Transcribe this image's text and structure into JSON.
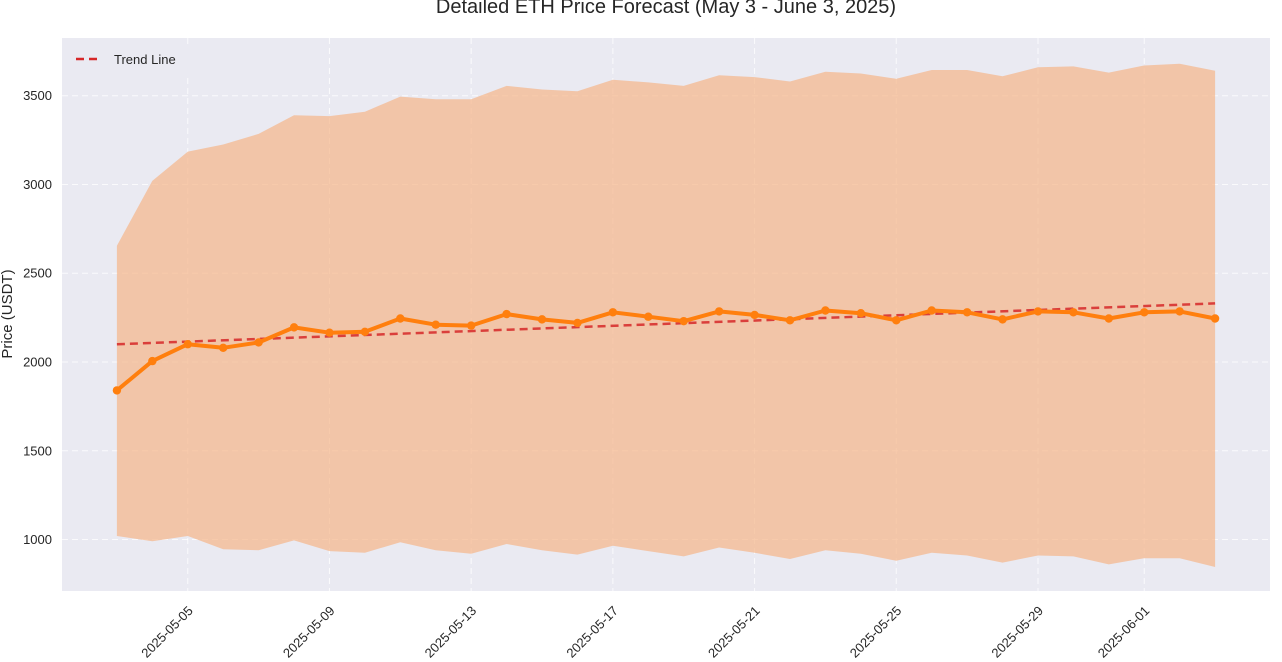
{
  "chart_data": {
    "type": "line",
    "title": "Detailed ETH Price Forecast (May 3 - June 3, 2025)",
    "xlabel": "",
    "ylabel": "Price (USDT)",
    "x": [
      "2025-05-03",
      "2025-05-04",
      "2025-05-05",
      "2025-05-06",
      "2025-05-07",
      "2025-05-08",
      "2025-05-09",
      "2025-05-10",
      "2025-05-11",
      "2025-05-12",
      "2025-05-13",
      "2025-05-14",
      "2025-05-15",
      "2025-05-16",
      "2025-05-17",
      "2025-05-18",
      "2025-05-19",
      "2025-05-20",
      "2025-05-21",
      "2025-05-22",
      "2025-05-23",
      "2025-05-24",
      "2025-05-25",
      "2025-05-26",
      "2025-05-27",
      "2025-05-28",
      "2025-05-29",
      "2025-05-30",
      "2025-05-31",
      "2025-06-01",
      "2025-06-02",
      "2025-06-03"
    ],
    "x_ticks": [
      "2025-05-05",
      "2025-05-09",
      "2025-05-13",
      "2025-05-17",
      "2025-05-21",
      "2025-05-25",
      "2025-05-29",
      "2025-06-01"
    ],
    "y_ticks": [
      1000,
      1500,
      2000,
      2500,
      3000,
      3500
    ],
    "ylim": [
      710,
      3825
    ],
    "grid": true,
    "legend_position": "top-left",
    "series": [
      {
        "kind": "forecast",
        "color": "#ff7f0e",
        "values": [
          1840,
          2005,
          2100,
          2080,
          2110,
          2195,
          2165,
          2170,
          2245,
          2210,
          2205,
          2270,
          2240,
          2220,
          2280,
          2255,
          2230,
          2285,
          2265,
          2235,
          2290,
          2275,
          2235,
          2290,
          2280,
          2240,
          2285,
          2280,
          2245,
          2280,
          2285,
          2245
        ]
      },
      {
        "kind": "interval",
        "color": "#f5b589",
        "lower": [
          1020,
          990,
          1020,
          945,
          940,
          995,
          935,
          925,
          985,
          940,
          920,
          975,
          940,
          915,
          965,
          935,
          905,
          955,
          925,
          890,
          940,
          920,
          880,
          925,
          910,
          870,
          910,
          905,
          860,
          895,
          895,
          845
        ],
        "upper": [
          2655,
          3020,
          3185,
          3225,
          3285,
          3390,
          3385,
          3410,
          3495,
          3480,
          3480,
          3555,
          3535,
          3525,
          3590,
          3575,
          3555,
          3615,
          3605,
          3580,
          3635,
          3625,
          3595,
          3645,
          3645,
          3610,
          3660,
          3665,
          3630,
          3670,
          3680,
          3640
        ]
      },
      {
        "name": "Trend Line",
        "kind": "trend",
        "color": "#d62728",
        "start": 2100,
        "end": 2330
      }
    ]
  }
}
